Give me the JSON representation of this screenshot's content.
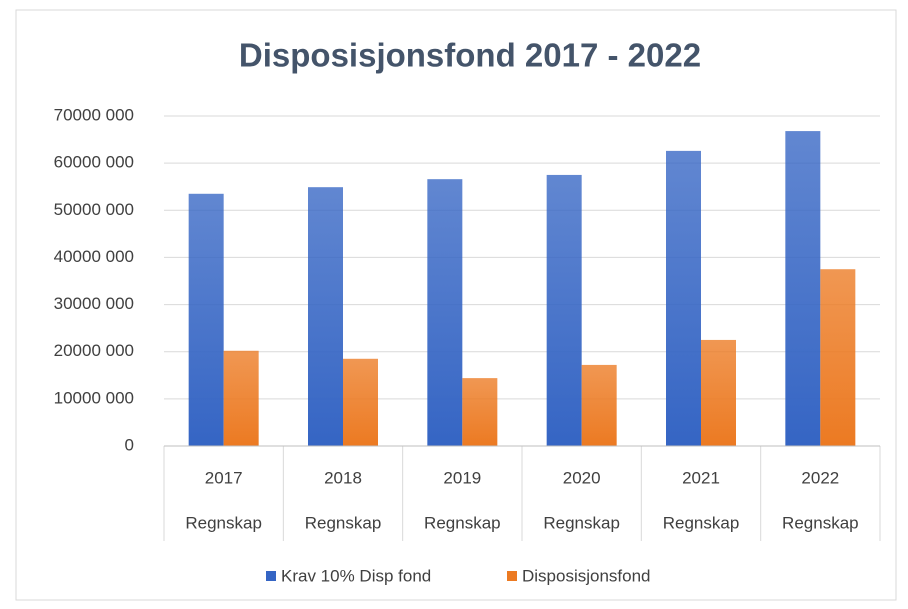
{
  "chart_data": {
    "type": "bar",
    "title": "Disposisjonsfond 2017 - 2022",
    "categories": [
      "2017",
      "2018",
      "2019",
      "2020",
      "2021",
      "2022"
    ],
    "subcategories": [
      "Regnskap",
      "Regnskap",
      "Regnskap",
      "Regnskap",
      "Regnskap",
      "Regnskap"
    ],
    "series": [
      {
        "name": "Krav 10% Disp fond",
        "color": "#3565c4",
        "values": [
          53500000,
          54900000,
          56600000,
          57500000,
          62600000,
          66800000
        ]
      },
      {
        "name": "Disposisjonsfond",
        "color": "#ec7a22",
        "values": [
          20200000,
          18500000,
          14400000,
          17200000,
          22500000,
          37500000
        ]
      }
    ],
    "ylim": [
      0,
      70000000
    ],
    "yticks": [
      0,
      {
        "value": 10000000,
        "label": "10000 000"
      },
      {
        "value": 20000000,
        "label": "20000 000"
      },
      {
        "value": 30000000,
        "label": "30000 000"
      },
      {
        "value": 40000000,
        "label": "40000 000"
      },
      {
        "value": 50000000,
        "label": "50000 000"
      },
      {
        "value": 60000000,
        "label": "60000 000"
      },
      {
        "value": 70000000,
        "label": "70000 000"
      }
    ],
    "grid": true,
    "legend": "bottom"
  }
}
